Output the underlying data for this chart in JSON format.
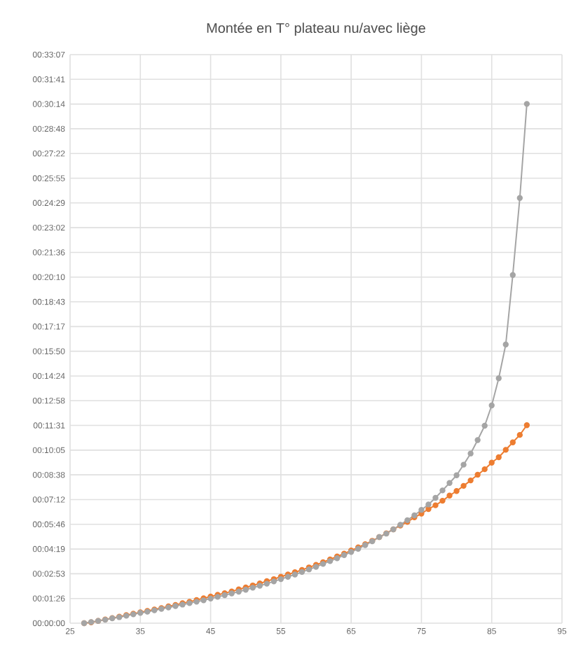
{
  "chart_data": {
    "type": "line",
    "title": "Montée en T° plateau nu/avec liège",
    "x": [
      27,
      28,
      29,
      30,
      31,
      32,
      33,
      34,
      35,
      36,
      37,
      38,
      39,
      40,
      41,
      42,
      43,
      44,
      45,
      46,
      47,
      48,
      49,
      50,
      51,
      52,
      53,
      54,
      55,
      56,
      57,
      58,
      59,
      60,
      61,
      62,
      63,
      64,
      65,
      66,
      67,
      68,
      69,
      70,
      71,
      72,
      73,
      74,
      75,
      76,
      77,
      78,
      79,
      80,
      81,
      82,
      83,
      84,
      85,
      86,
      87,
      88,
      89,
      90
    ],
    "series": [
      {
        "color": "#ed7d31",
        "values": [
          0,
          3,
          8,
          13,
          18,
          23,
          28,
          33,
          38,
          43,
          48,
          53,
          59,
          64,
          70,
          75,
          81,
          87,
          93,
          99,
          105,
          111,
          118,
          125,
          132,
          139,
          147,
          154,
          162,
          170,
          178,
          186,
          195,
          204,
          213,
          223,
          233,
          243,
          254,
          265,
          276,
          288,
          301,
          314,
          328,
          341,
          354,
          370,
          383,
          399,
          412,
          428,
          446,
          462,
          480,
          499,
          519,
          538,
          561,
          580,
          606,
          632,
          658,
          692
        ]
      },
      {
        "color": "#a5a5a5",
        "values": [
          0,
          4,
          8,
          12,
          17,
          21,
          26,
          31,
          36,
          40,
          45,
          50,
          55,
          60,
          65,
          70,
          75,
          80,
          86,
          92,
          98,
          104,
          110,
          117,
          124,
          131,
          138,
          146,
          154,
          162,
          170,
          179,
          188,
          197,
          207,
          217,
          227,
          238,
          249,
          260,
          273,
          286,
          301,
          313,
          328,
          344,
          360,
          377,
          396,
          415,
          438,
          464,
          490,
          517,
          554,
          593,
          640,
          690,
          761,
          856,
          974,
          1217,
          1486,
          1815
        ]
      }
    ],
    "xlim": [
      25,
      95
    ],
    "xticks": [
      25,
      35,
      45,
      55,
      65,
      75,
      85,
      95
    ],
    "ylim": [
      0,
      1987.2
    ],
    "yticks": [
      {
        "value": 0,
        "label": "00:00:00"
      },
      {
        "value": 86.4,
        "label": "00:01:26"
      },
      {
        "value": 172.8,
        "label": "00:02:53"
      },
      {
        "value": 259.2,
        "label": "00:04:19"
      },
      {
        "value": 345.6,
        "label": "00:05:46"
      },
      {
        "value": 432,
        "label": "00:07:12"
      },
      {
        "value": 518.4,
        "label": "00:08:38"
      },
      {
        "value": 604.8,
        "label": "00:10:05"
      },
      {
        "value": 691.2,
        "label": "00:11:31"
      },
      {
        "value": 777.6,
        "label": "00:12:58"
      },
      {
        "value": 864,
        "label": "00:14:24"
      },
      {
        "value": 950.4,
        "label": "00:15:50"
      },
      {
        "value": 1036.8,
        "label": "00:17:17"
      },
      {
        "value": 1123.2,
        "label": "00:18:43"
      },
      {
        "value": 1209.6,
        "label": "00:20:10"
      },
      {
        "value": 1296,
        "label": "00:21:36"
      },
      {
        "value": 1382.4,
        "label": "00:23:02"
      },
      {
        "value": 1468.8,
        "label": "00:24:29"
      },
      {
        "value": 1555.2,
        "label": "00:25:55"
      },
      {
        "value": 1641.6,
        "label": "00:27:22"
      },
      {
        "value": 1728,
        "label": "00:28:48"
      },
      {
        "value": 1814.4,
        "label": "00:30:14"
      },
      {
        "value": 1900.8,
        "label": "00:31:41"
      },
      {
        "value": 1987.2,
        "label": "00:33:07"
      }
    ],
    "grid": true,
    "marker": "circle",
    "line_style": "solid"
  }
}
